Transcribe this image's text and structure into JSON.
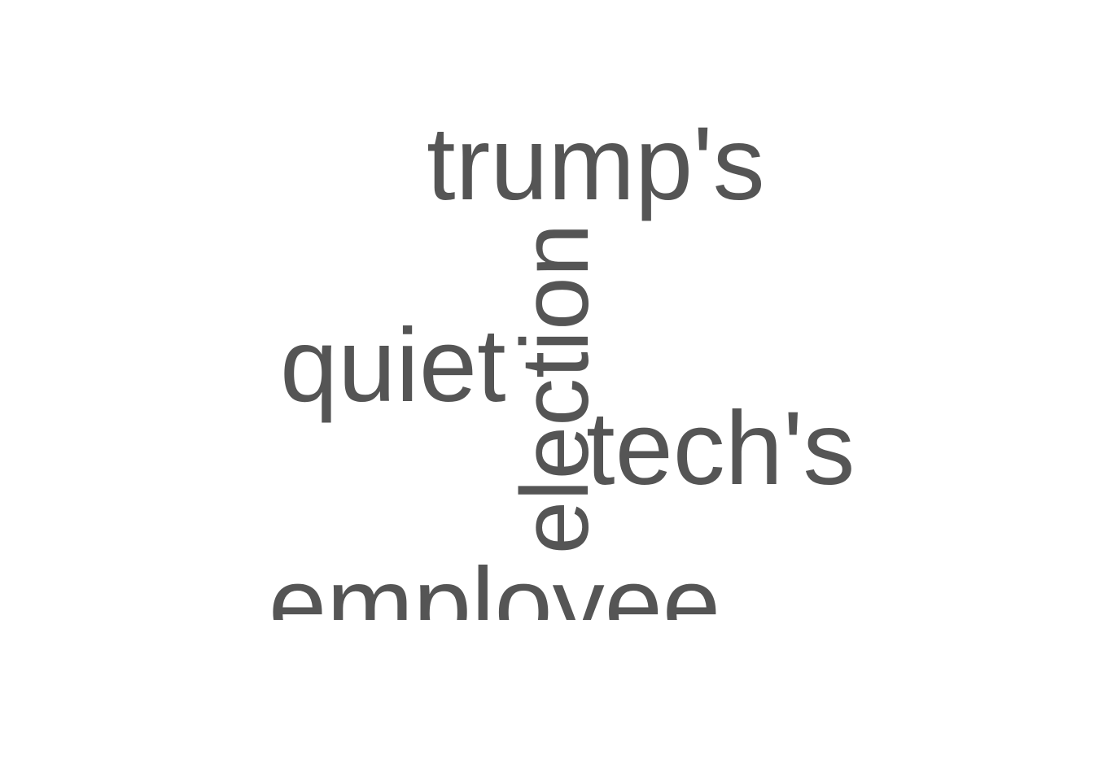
{
  "words": {
    "trumps": "trump's",
    "quiet": "quiet",
    "techs": "tech's",
    "election": "election",
    "employee": "employee"
  },
  "colors": {
    "text": "#555555",
    "background": "#ffffff"
  }
}
